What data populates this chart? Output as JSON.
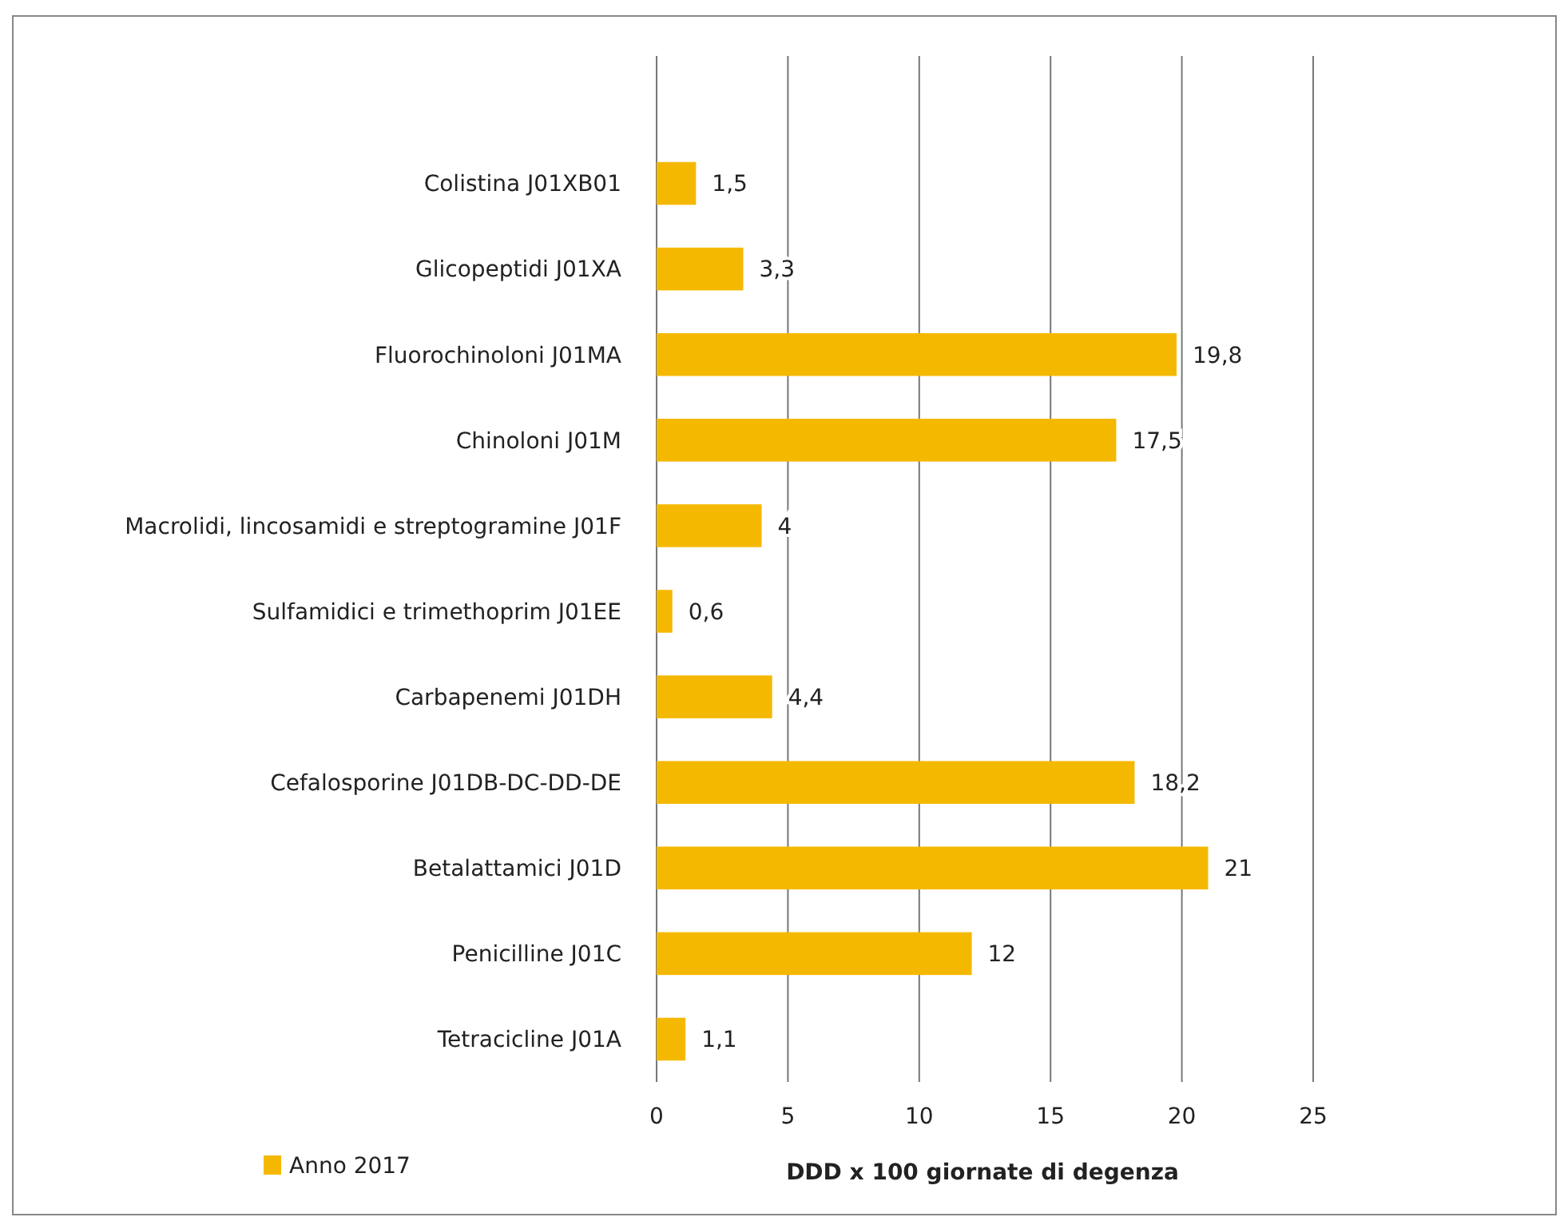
{
  "chart_data": {
    "type": "bar",
    "orientation": "horizontal",
    "xlabel": "DDD x 100 giornate di degenza",
    "categories": [
      "Colistina J01XB01",
      "Glicopeptidi J01XA",
      "Fluorochinoloni J01MA",
      "Chinoloni J01M",
      "Macrolidi, lincosamidi e streptogramine J01F",
      "Sulfamidici e trimethoprim J01EE",
      "Carbapenemi J01DH",
      "Cefalosporine J01DB-DC-DD-DE",
      "Betalattamici J01D",
      "Penicilline J01C",
      "Tetracicline J01A"
    ],
    "series": [
      {
        "name": "Anno 2017",
        "color": "#f5b800",
        "values": [
          1.5,
          3.3,
          19.8,
          17.5,
          4,
          0.6,
          4.4,
          18.2,
          21,
          12,
          1.1
        ],
        "value_labels": [
          "1,5",
          "3,3",
          "19,8",
          "17,5",
          "4",
          "0,6",
          "4,4",
          "18,2",
          "21",
          "12",
          "1,1"
        ]
      }
    ],
    "xlim": [
      0,
      25
    ],
    "xticks": [
      0,
      5,
      10,
      15,
      20,
      25
    ],
    "grid": "x",
    "legend": "bottom left"
  }
}
